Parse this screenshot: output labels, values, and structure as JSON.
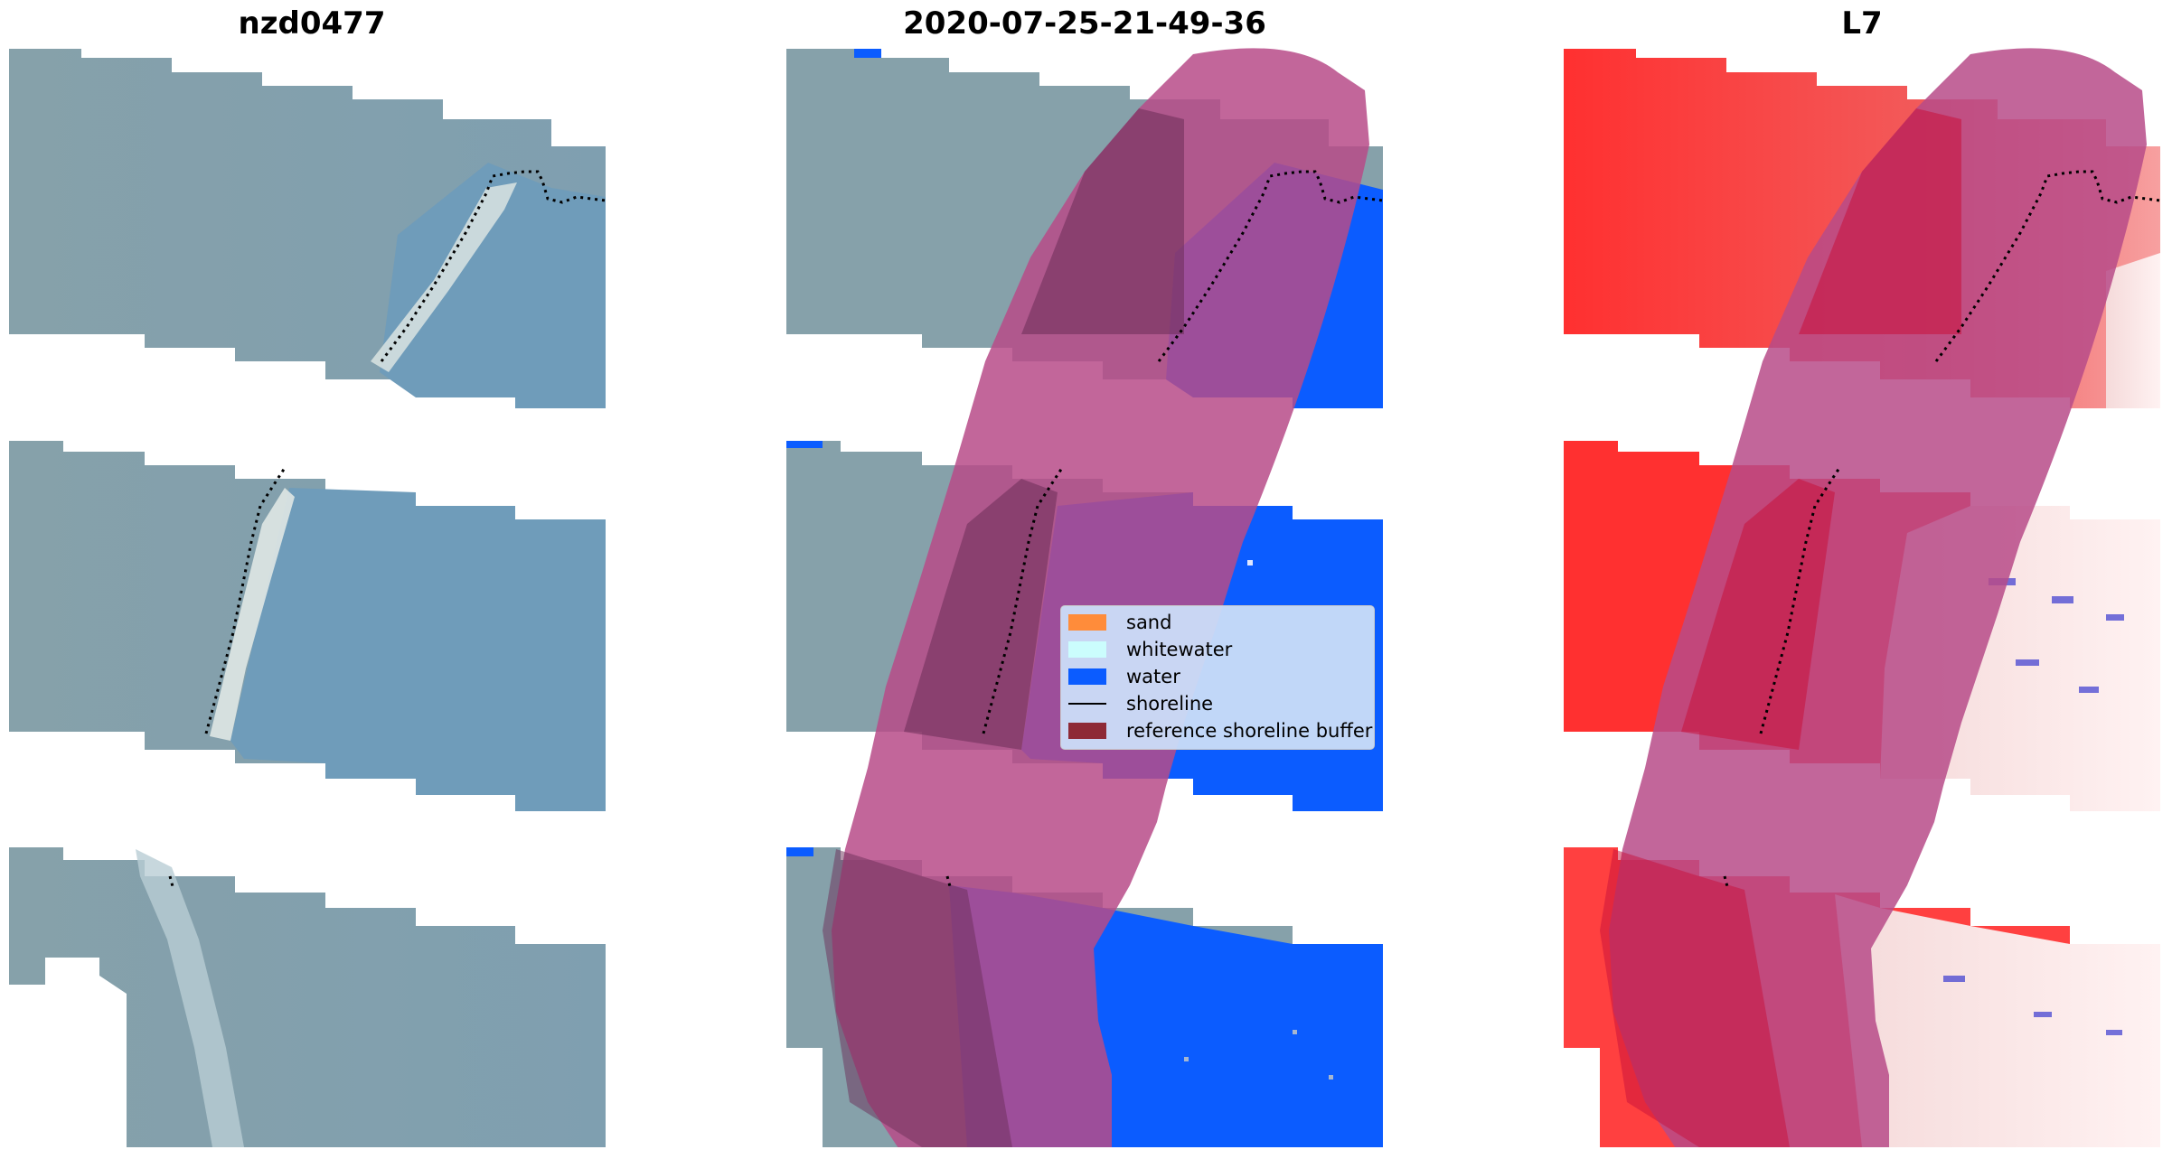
{
  "panels": [
    {
      "title": "nzd0477"
    },
    {
      "title": "2020-07-25-21-49-36"
    },
    {
      "title": "L7"
    }
  ],
  "legend": {
    "items": [
      {
        "label": "sand",
        "color": "#ff8c3a",
        "kind": "patch"
      },
      {
        "label": "whitewater",
        "color": "#cbfdfd",
        "kind": "patch"
      },
      {
        "label": "water",
        "color": "#0b5cff",
        "kind": "patch"
      },
      {
        "label": "shoreline",
        "color": "#000000",
        "kind": "line"
      },
      {
        "label": "reference shoreline buffer",
        "color": "#8e2a36",
        "kind": "patch"
      }
    ]
  },
  "colors": {
    "land_rgb": "#7f99aa",
    "sea_rgb": "#6f9cba",
    "water_class": "#0b5cff",
    "buffer_overlay": "#b74b88",
    "index_positive": "#ff2a2a",
    "index_negative": "#3a3ad0"
  }
}
